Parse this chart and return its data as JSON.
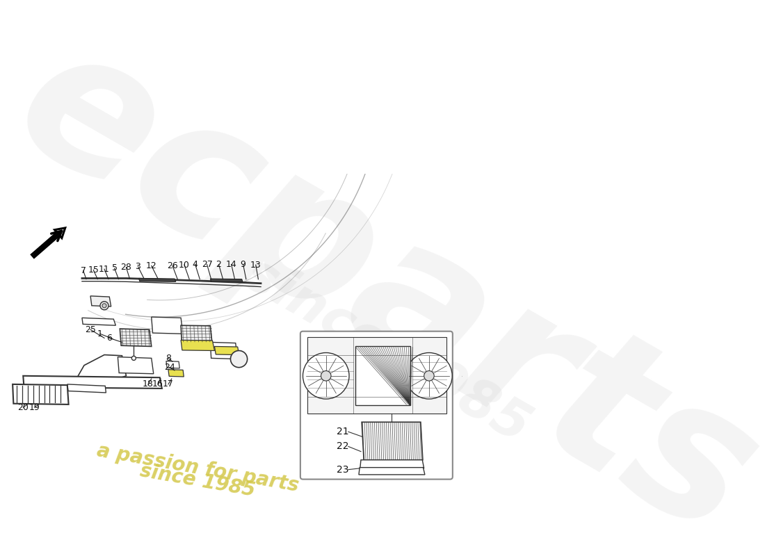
{
  "bg_color": "#ffffff",
  "line_color": "#333333",
  "watermark_color": "#d4c84a",
  "highlight_color": "#e8e050",
  "inset_bg": "#f8f8f8",
  "arrow_color": "#111111",
  "leader_color": "#222222",
  "part_nums_top_left": [
    "7",
    "15",
    "11",
    "5",
    "28",
    "3",
    "12"
  ],
  "part_nums_top_right": [
    "26",
    "10",
    "4",
    "27",
    "2",
    "14",
    "9",
    "13"
  ],
  "wm1": "a passion for parts",
  "wm2": "since 1985"
}
